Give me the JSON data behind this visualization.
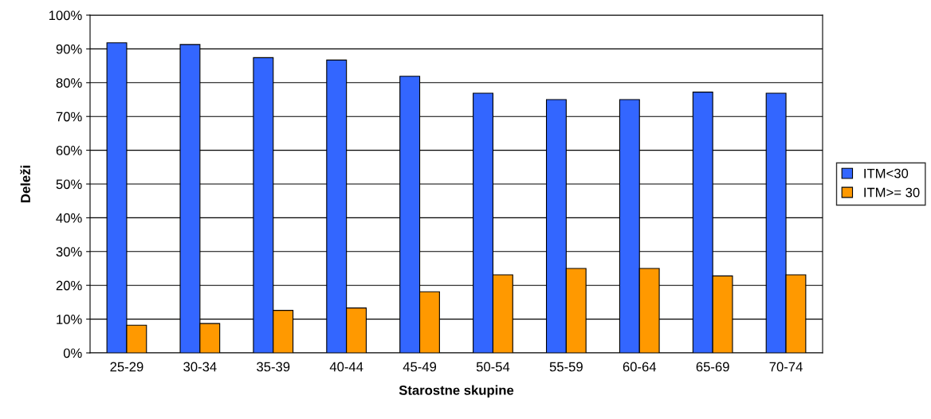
{
  "chart_data": {
    "type": "bar",
    "xlabel": "Starostne skupine",
    "ylabel": "Deleži",
    "categories": [
      "25-29",
      "30-34",
      "35-39",
      "40-44",
      "45-49",
      "50-54",
      "55-59",
      "60-64",
      "65-69",
      "70-74"
    ],
    "series": [
      {
        "name": "ITM<30",
        "color": "#3366ff",
        "values": [
          91.8,
          91.3,
          87.4,
          86.7,
          81.9,
          76.9,
          75.0,
          75.0,
          77.2,
          76.9
        ]
      },
      {
        "name": "ITM>= 30",
        "color": "#ff9900",
        "values": [
          8.2,
          8.7,
          12.6,
          13.3,
          18.1,
          23.1,
          25.0,
          25.0,
          22.8,
          23.1
        ]
      }
    ],
    "ylim": [
      0,
      100
    ],
    "yticks": [
      {
        "value": 0,
        "label": "0%"
      },
      {
        "value": 10,
        "label": "10%"
      },
      {
        "value": 20,
        "label": "20%"
      },
      {
        "value": 30,
        "label": "30%"
      },
      {
        "value": 40,
        "label": "40%"
      },
      {
        "value": 50,
        "label": "50%"
      },
      {
        "value": 60,
        "label": "60%"
      },
      {
        "value": 70,
        "label": "70%"
      },
      {
        "value": 80,
        "label": "80%"
      },
      {
        "value": 90,
        "label": "90%"
      },
      {
        "value": 100,
        "label": "100%"
      }
    ],
    "grid": "y",
    "legend": "right"
  }
}
